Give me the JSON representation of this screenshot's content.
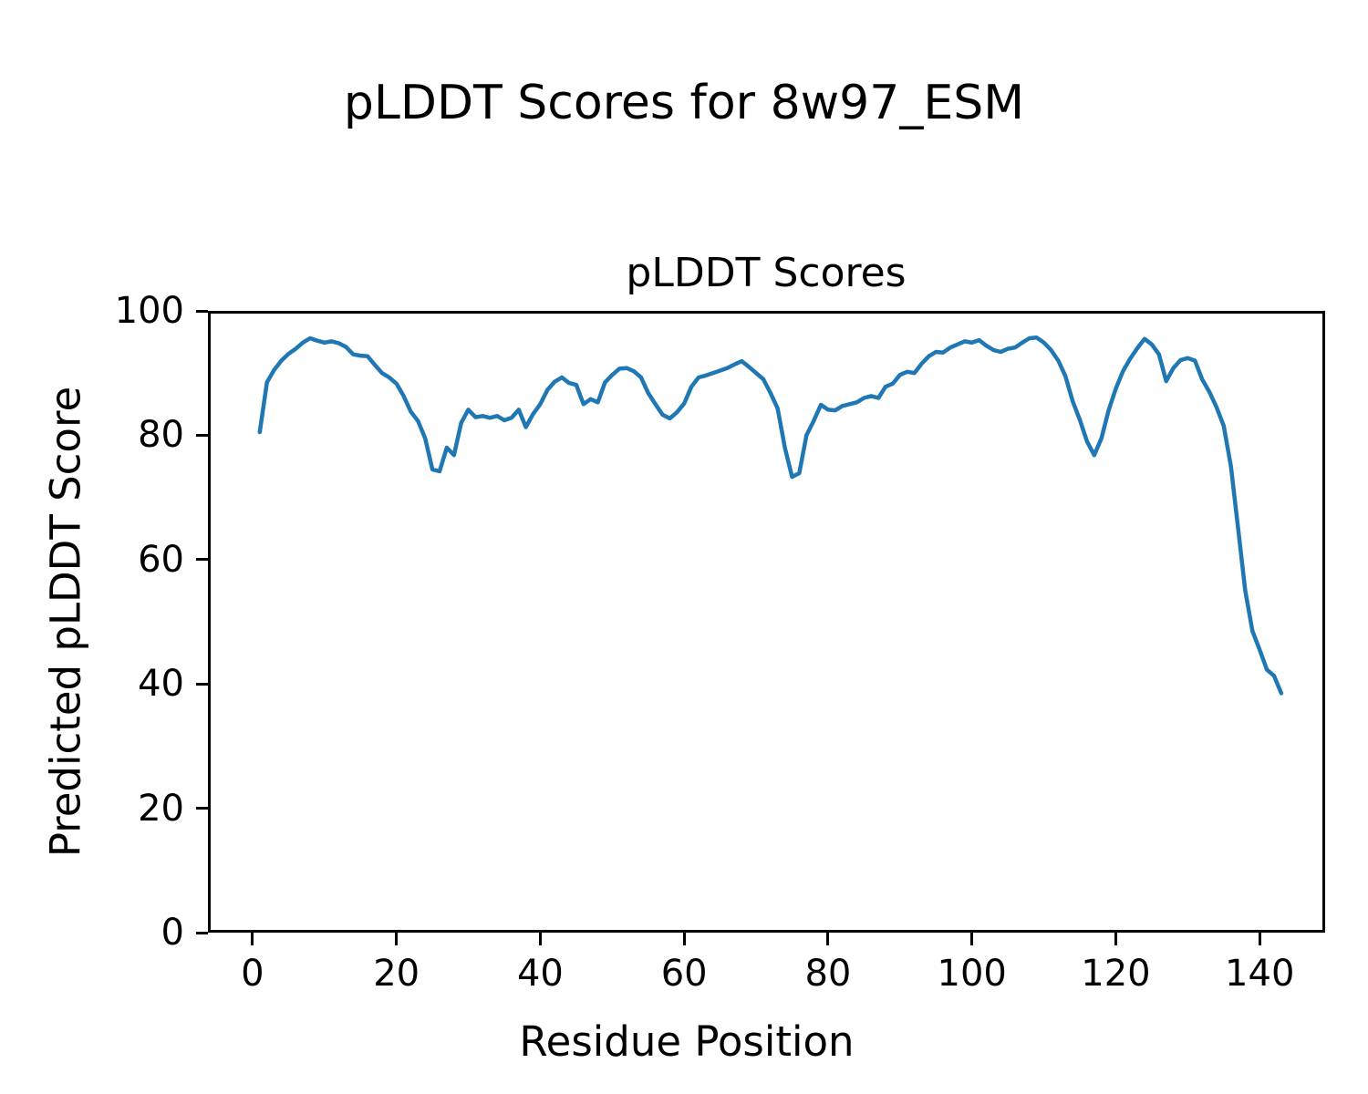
{
  "figure": {
    "suptitle": "pLDDT Scores for 8w97_ESM",
    "axes_title": "pLDDT Scores",
    "xlabel": "Residue Position",
    "ylabel": "Predicted pLDDT Score"
  },
  "chart_data": {
    "type": "line",
    "title": "pLDDT Scores",
    "suptitle": "pLDDT Scores for 8w97_ESM",
    "xlabel": "Residue Position",
    "ylabel": "Predicted pLDDT Score",
    "xlim": [
      -6.2,
      149.1
    ],
    "ylim": [
      0,
      100
    ],
    "x_ticks": [
      0,
      20,
      40,
      60,
      80,
      100,
      120,
      140
    ],
    "y_ticks": [
      0,
      20,
      40,
      60,
      80,
      100
    ],
    "grid": false,
    "legend": null,
    "line_color": "#1f77b4",
    "line_width": 4.5,
    "series": [
      {
        "name": "pLDDT",
        "x_start": 1,
        "x_step": 1,
        "values": [
          80.5,
          88.5,
          90.5,
          92.0,
          93.1,
          93.9,
          94.9,
          95.6,
          95.2,
          94.9,
          95.1,
          94.8,
          94.2,
          93.0,
          92.8,
          92.7,
          91.3,
          90.0,
          89.3,
          88.3,
          86.3,
          83.8,
          82.3,
          79.5,
          74.5,
          74.2,
          78.0,
          76.8,
          82.0,
          84.1,
          82.9,
          83.1,
          82.8,
          83.1,
          82.4,
          82.8,
          84.1,
          81.3,
          83.4,
          85.0,
          87.3,
          88.6,
          89.3,
          88.4,
          88.1,
          85.0,
          85.8,
          85.3,
          88.5,
          89.7,
          90.7,
          90.8,
          90.3,
          89.3,
          86.8,
          85.0,
          83.3,
          82.7,
          83.7,
          85.1,
          87.8,
          89.3,
          89.6,
          90.0,
          90.4,
          90.8,
          91.4,
          91.9,
          91.0,
          90.0,
          89.0,
          86.8,
          84.3,
          78.0,
          73.3,
          73.9,
          80.0,
          82.3,
          84.9,
          84.1,
          84.0,
          84.7,
          85.0,
          85.3,
          86.0,
          86.3,
          86.0,
          87.8,
          88.3,
          89.7,
          90.2,
          90.0,
          91.5,
          92.7,
          93.4,
          93.3,
          94.1,
          94.6,
          95.1,
          94.9,
          95.3,
          94.4,
          93.7,
          93.4,
          93.9,
          94.1,
          94.9,
          95.6,
          95.7,
          94.9,
          93.7,
          92.0,
          89.5,
          85.5,
          82.5,
          79.0,
          76.8,
          79.5,
          84.0,
          87.5,
          90.3,
          92.3,
          94.0,
          95.5,
          94.6,
          93.0,
          88.7,
          90.8,
          92.1,
          92.4,
          92.0,
          89.0,
          87.0,
          84.5,
          81.5,
          75.0,
          65.0,
          55.0,
          48.5,
          45.5,
          42.3,
          41.3,
          38.5
        ]
      }
    ]
  }
}
